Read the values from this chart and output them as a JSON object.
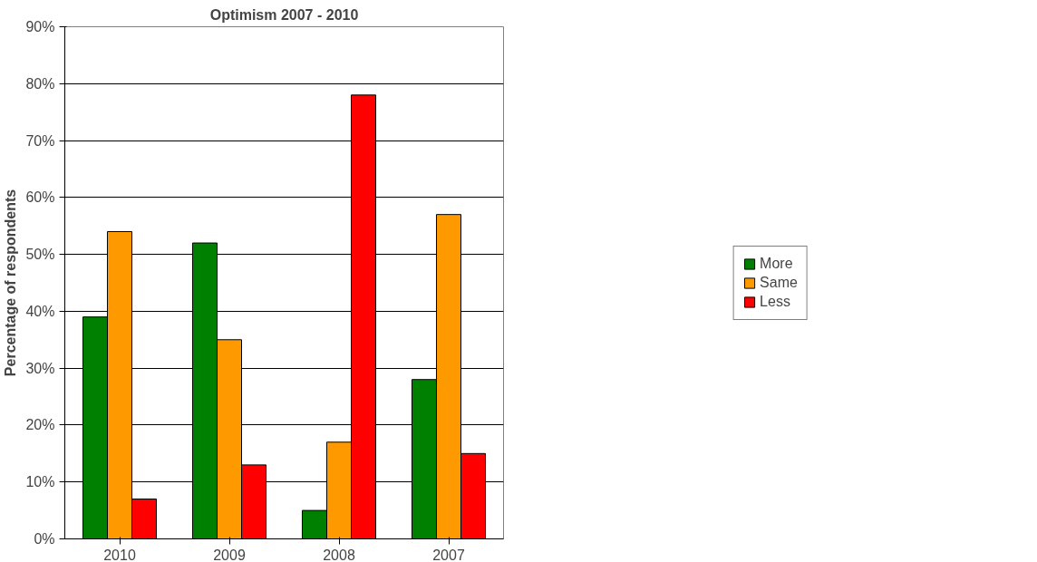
{
  "chart_data": {
    "type": "bar",
    "title": "Optimism 2007 - 2010",
    "ylabel": "Percentage of respondents",
    "categories": [
      "2010",
      "2009",
      "2008",
      "2007"
    ],
    "series": [
      {
        "name": "More",
        "color": "#008000",
        "values": [
          39,
          52,
          5,
          28
        ]
      },
      {
        "name": "Same",
        "color": "#ff9900",
        "values": [
          54,
          35,
          17,
          57
        ]
      },
      {
        "name": "Less",
        "color": "#ff0000",
        "values": [
          7,
          13,
          78,
          15
        ]
      }
    ],
    "ylim": [
      0,
      90
    ],
    "yticks": [
      {
        "value": 0,
        "label": "0%"
      },
      {
        "value": 10,
        "label": "10%"
      },
      {
        "value": 20,
        "label": "20%"
      },
      {
        "value": 30,
        "label": "30%"
      },
      {
        "value": 40,
        "label": "40%"
      },
      {
        "value": 50,
        "label": "50%"
      },
      {
        "value": 60,
        "label": "60%"
      },
      {
        "value": 70,
        "label": "70%"
      },
      {
        "value": 80,
        "label": "80%"
      },
      {
        "value": 90,
        "label": "90%"
      }
    ],
    "grid": "y",
    "legend": "right"
  }
}
